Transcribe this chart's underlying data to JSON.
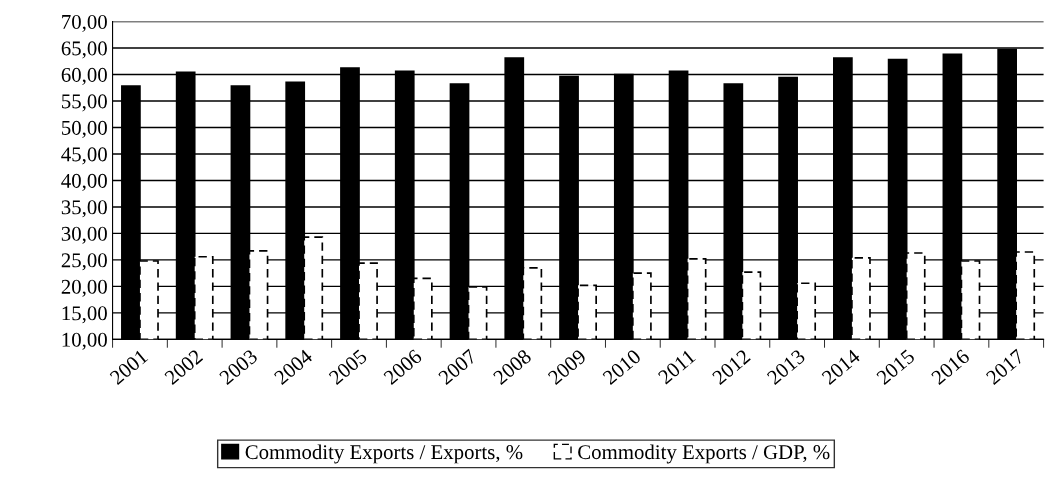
{
  "chart_data": {
    "type": "bar",
    "categories": [
      "2001",
      "2002",
      "2003",
      "2004",
      "2005",
      "2006",
      "2007",
      "2008",
      "2009",
      "2010",
      "2011",
      "2012",
      "2013",
      "2014",
      "2015",
      "2016",
      "2017"
    ],
    "series": [
      {
        "name": "Commodity Exports / Exports, %",
        "color": "#000000",
        "line_style": "solid",
        "values": [
          57.8,
          60.4,
          57.8,
          58.5,
          61.2,
          60.6,
          58.2,
          63.1,
          59.6,
          60.0,
          60.6,
          58.2,
          59.4,
          63.1,
          62.8,
          63.8,
          64.7
        ]
      },
      {
        "name": "Commodity Exports / GDP, %",
        "color": "#ffffff",
        "line_style": "dashed",
        "values": [
          24.8,
          25.6,
          26.7,
          29.3,
          24.4,
          21.5,
          19.9,
          23.5,
          20.2,
          22.5,
          25.2,
          22.7,
          20.6,
          25.4,
          26.3,
          24.8,
          26.5
        ]
      }
    ],
    "ylim": [
      10,
      70
    ],
    "yticks": [
      {
        "value": 10,
        "label": "10,00"
      },
      {
        "value": 15,
        "label": "15,00"
      },
      {
        "value": 20,
        "label": "20,00"
      },
      {
        "value": 25,
        "label": "25,00"
      },
      {
        "value": 30,
        "label": "30,00"
      },
      {
        "value": 35,
        "label": "35,00"
      },
      {
        "value": 40,
        "label": "40,00"
      },
      {
        "value": 45,
        "label": "45,00"
      },
      {
        "value": 50,
        "label": "50,00"
      },
      {
        "value": 55,
        "label": "55,00"
      },
      {
        "value": 60,
        "label": "60,00"
      },
      {
        "value": 65,
        "label": "65,00"
      },
      {
        "value": 70,
        "label": "70,00"
      }
    ],
    "grid": "y",
    "legend": "bottom"
  }
}
